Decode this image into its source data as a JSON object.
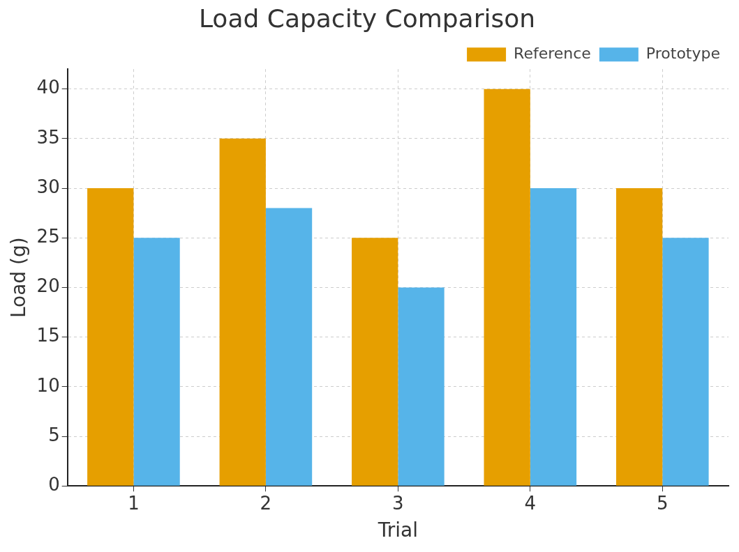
{
  "chart_data": {
    "type": "bar",
    "title": "Load Capacity Comparison",
    "xlabel": "Trial",
    "ylabel": "Load (g)",
    "categories": [
      "1",
      "2",
      "3",
      "4",
      "5"
    ],
    "series": [
      {
        "name": "Reference",
        "color": "#e69f00",
        "values": [
          30,
          35,
          25,
          40,
          30
        ]
      },
      {
        "name": "Prototype",
        "color": "#56b4e9",
        "values": [
          25,
          28,
          20,
          30,
          25
        ]
      }
    ],
    "ylim": [
      0,
      42
    ],
    "yticks": [
      0,
      5,
      10,
      15,
      20,
      25,
      30,
      35,
      40
    ],
    "grid": true,
    "legend": "top right"
  }
}
